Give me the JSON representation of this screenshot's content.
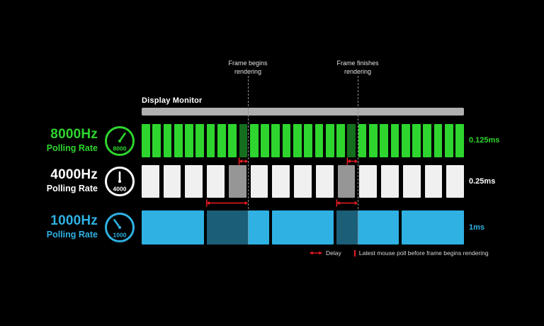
{
  "annotations": {
    "frame_begins_line1": "Frame begins",
    "frame_begins_line2": "rendering",
    "frame_finishes_line1": "Frame finishes",
    "frame_finishes_line2": "rendering"
  },
  "monitor": {
    "label": "Display Monitor",
    "bar_color": "#b0b0b0"
  },
  "rows": [
    {
      "id": "row-8000hz",
      "freq_label": "8000Hz",
      "sub_label": "Polling Rate",
      "gauge_value": "8000",
      "interval_label": "0.125ms",
      "poll_interval_ms": 0.125,
      "bar_count": 30,
      "bar_color": "#2ed52e",
      "highlight_color": "#156e1e",
      "text_color": "#2ed52e",
      "highlight_bar_indices": [
        9,
        19
      ],
      "highlight_style": "full"
    },
    {
      "id": "row-4000hz",
      "freq_label": "4000Hz",
      "sub_label": "Polling Rate",
      "gauge_value": "4000",
      "interval_label": "0.25ms",
      "poll_interval_ms": 0.25,
      "bar_count": 15,
      "bar_color": "#f0f0f0",
      "highlight_color": "#969696",
      "text_color": "#ffffff",
      "highlight_bar_indices": [
        4,
        9
      ],
      "highlight_style": "full"
    },
    {
      "id": "row-1000hz",
      "freq_label": "1000Hz",
      "sub_label": "Polling Rate",
      "gauge_value": "1000",
      "interval_label": "1ms",
      "poll_interval_ms": 1,
      "bar_count": 5,
      "bar_color": "#2fb1e3",
      "highlight_color": "#1a5e78",
      "text_color": "#2fb1e3",
      "highlight_bar_indices": [
        1,
        3
      ],
      "highlight_style": "partial"
    }
  ],
  "legend": {
    "delay_label": "Delay",
    "poll_label": "Latest mouse poll before frame begins rendering",
    "accent_color": "#ed1c24"
  }
}
